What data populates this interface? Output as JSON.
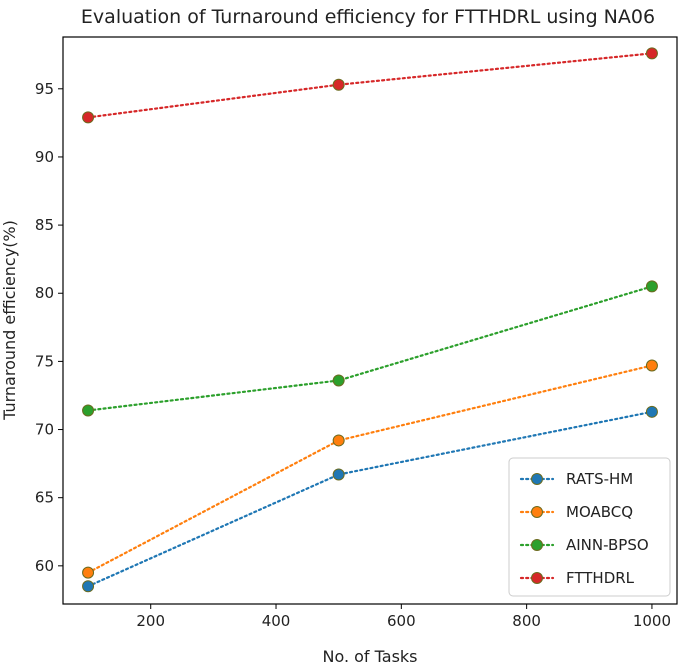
{
  "chart_data": {
    "type": "line",
    "title": "Evaluation of Turnaround efficiency for FTTHDRL using NA06",
    "xlabel": "No. of Tasks",
    "ylabel": "Turnaround efficiency(%)",
    "x": [
      100,
      500,
      1000
    ],
    "xlim": [
      60,
      1040
    ],
    "ylim": [
      57.2,
      98.8
    ],
    "xticks": [
      200,
      400,
      600,
      800,
      1000
    ],
    "yticks": [
      60,
      65,
      70,
      75,
      80,
      85,
      90,
      95
    ],
    "grid": false,
    "legend_position": "lower-right",
    "series": [
      {
        "name": "RATS-HM",
        "values": [
          58.5,
          66.7,
          71.3
        ],
        "color": "#1f77b4"
      },
      {
        "name": "MOABCQ",
        "values": [
          59.5,
          69.2,
          74.7
        ],
        "color": "#ff7f0e"
      },
      {
        "name": "AINN-BPSO",
        "values": [
          71.4,
          73.6,
          80.5
        ],
        "color": "#2ca02c"
      },
      {
        "name": "FTTHDRL",
        "values": [
          92.9,
          95.3,
          97.6
        ],
        "color": "#d62728"
      }
    ]
  }
}
